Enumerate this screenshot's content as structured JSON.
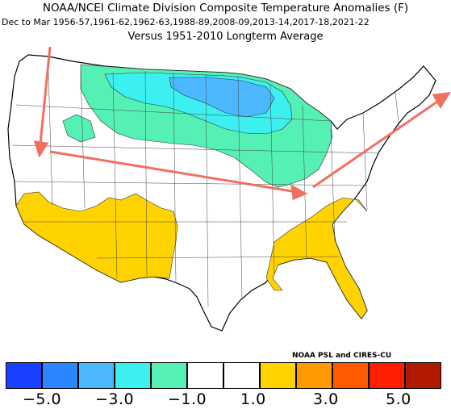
{
  "header": {
    "title": "NOAA/NCEI Climate Division Composite Temperature Anomalies (F)",
    "subtitle": "Dec to Mar  1956-57,1961-62,1962-63,1988-89,2008-09,2013-14,2017-18,2021-22",
    "baseline": "Versus 1951-2010 Longterm Average"
  },
  "credit": "NOAA PSL and CIRES-CU",
  "colorbar": {
    "colors": [
      "#1a40ff",
      "#2b86ff",
      "#4cb8ff",
      "#3df0f0",
      "#55f0b4",
      "#ffffff",
      "#ffffff",
      "#ffd300",
      "#ff9a00",
      "#ff5a00",
      "#ff1e00",
      "#b21a00"
    ],
    "labels": [
      "-5.0",
      "-3.0",
      "-1.0",
      "1.0",
      "3.0",
      "5.0"
    ]
  },
  "legend_colors": {
    "anomaly_warm": "#ffd300",
    "anomaly_cool_mid": "#55f0b4",
    "anomaly_cold": "#3df0f0",
    "anomaly_colder": "#4cb8ff",
    "arrow": "#f07060"
  }
}
